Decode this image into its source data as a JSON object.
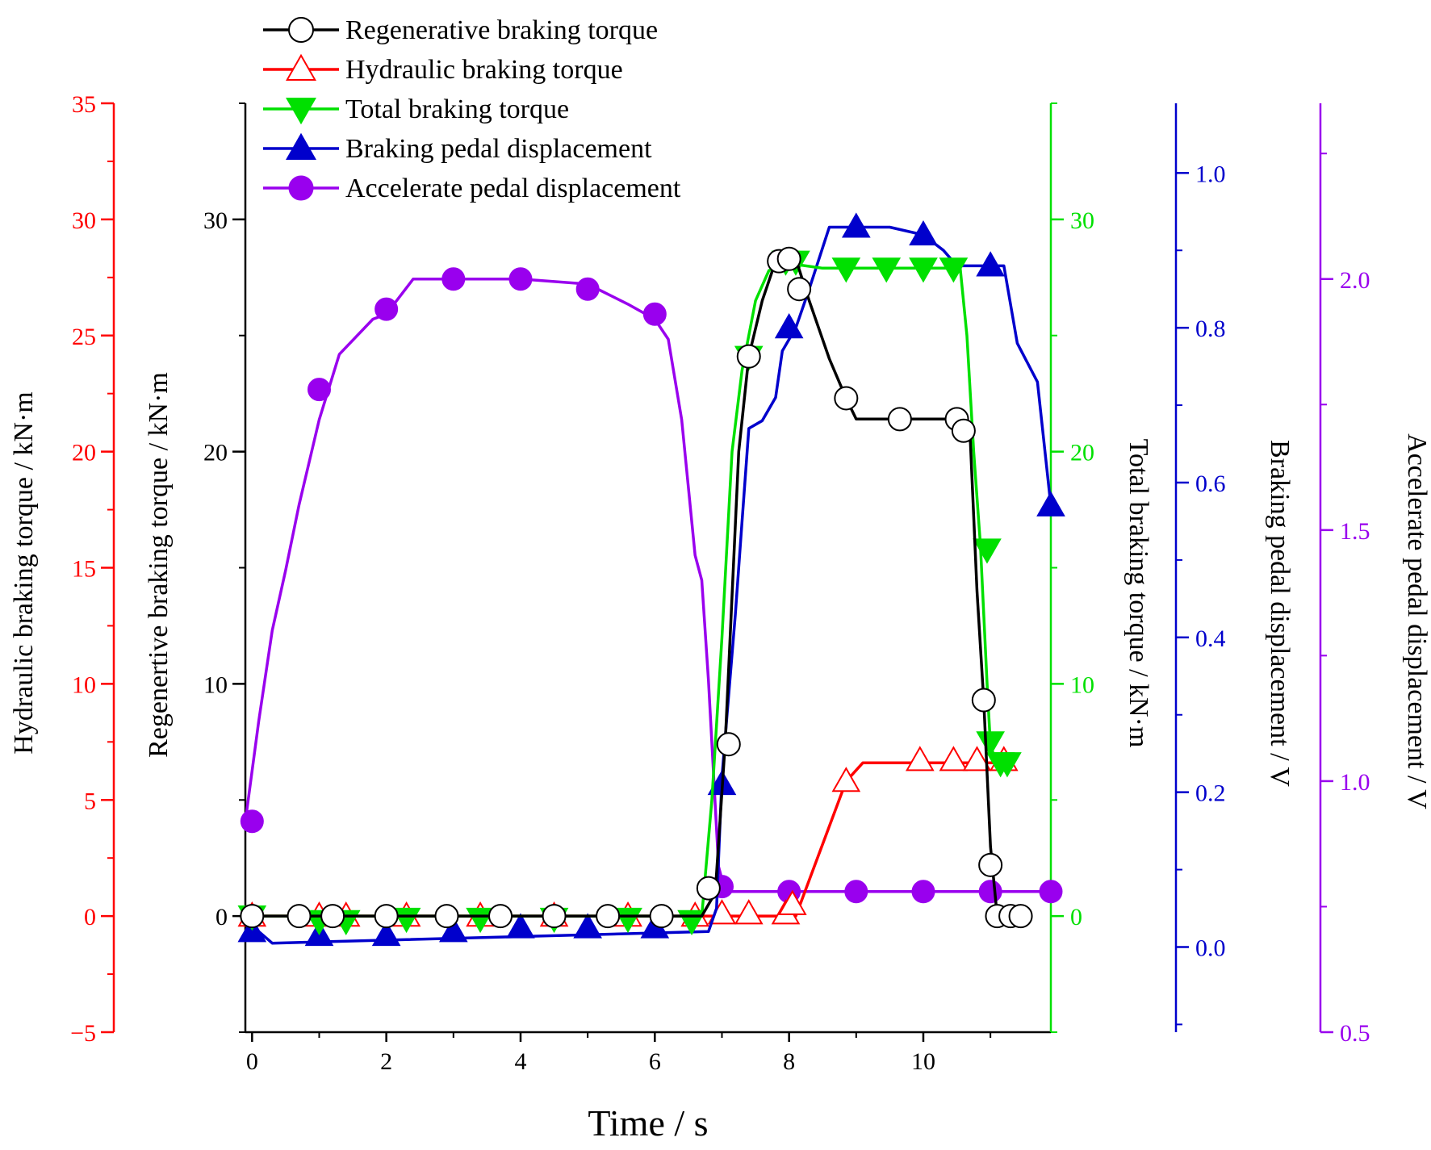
{
  "chart_data": {
    "type": "line",
    "xlabel": "Time  / s",
    "xlim": [
      -0.1,
      11.9
    ],
    "xticks": [
      0,
      2,
      4,
      6,
      8,
      10
    ],
    "axes": [
      {
        "id": "hyd",
        "title": "Hydraulic braking torque / kN·m",
        "color": "#ff0000",
        "range": [
          -5,
          35
        ],
        "ticks": [
          -5,
          0,
          5,
          10,
          15,
          20,
          25,
          30,
          35
        ]
      },
      {
        "id": "regen",
        "title": "Regenertive braking torque / kN·m",
        "color": "#000000",
        "range": [
          -5,
          35
        ],
        "ticks": [
          0,
          10,
          20,
          30
        ]
      },
      {
        "id": "total",
        "title": "Total braking torque / kN·m",
        "color": "#00e000",
        "range": [
          -5,
          35
        ],
        "ticks": [
          0,
          10,
          20,
          30
        ]
      },
      {
        "id": "brake",
        "title": "Braking pedal displacement / V",
        "color": "#0000cc",
        "range": [
          -0.11,
          1.09
        ],
        "ticks": [
          0.0,
          0.2,
          0.4,
          0.6,
          0.8,
          1.0
        ]
      },
      {
        "id": "accel",
        "title": "Accelerate pedal displacement / V",
        "color": "#9900ee",
        "range": [
          0.5,
          2.35
        ],
        "ticks": [
          0.5,
          1.0,
          1.5,
          2.0
        ]
      }
    ],
    "series": [
      {
        "name": "Regenerative braking torque",
        "axis": "regen",
        "color": "#000000",
        "marker": "circle-open",
        "line": [
          [
            -0.1,
            0
          ],
          [
            6.7,
            0
          ],
          [
            6.9,
            1
          ],
          [
            7.05,
            7.5
          ],
          [
            7.25,
            20
          ],
          [
            7.4,
            24.1
          ],
          [
            7.6,
            26.5
          ],
          [
            7.8,
            28.2
          ],
          [
            8.1,
            28.3
          ],
          [
            8.3,
            26.5
          ],
          [
            8.6,
            24
          ],
          [
            8.85,
            22.3
          ],
          [
            9.0,
            21.4
          ],
          [
            10.6,
            21.4
          ],
          [
            10.7,
            20.5
          ],
          [
            10.8,
            14
          ],
          [
            10.9,
            9.3
          ],
          [
            11.0,
            3
          ],
          [
            11.1,
            0
          ],
          [
            11.5,
            0
          ]
        ],
        "markers": [
          [
            0,
            0
          ],
          [
            0.7,
            0
          ],
          [
            1.2,
            0
          ],
          [
            2.0,
            0
          ],
          [
            2.9,
            0
          ],
          [
            3.7,
            0
          ],
          [
            4.5,
            0
          ],
          [
            5.3,
            0
          ],
          [
            6.1,
            0
          ],
          [
            6.8,
            1.2
          ],
          [
            7.1,
            7.4
          ],
          [
            7.4,
            24.1
          ],
          [
            7.85,
            28.2
          ],
          [
            8.0,
            28.3
          ],
          [
            8.15,
            27
          ],
          [
            8.85,
            22.3
          ],
          [
            9.65,
            21.4
          ],
          [
            10.5,
            21.4
          ],
          [
            10.6,
            20.9
          ],
          [
            10.9,
            9.3
          ],
          [
            11.0,
            2.2
          ],
          [
            11.1,
            0
          ],
          [
            11.3,
            0
          ],
          [
            11.45,
            0
          ]
        ]
      },
      {
        "name": "Hydraulic braking torque",
        "axis": "hyd",
        "color": "#ff0000",
        "marker": "triangle-up-open",
        "line": [
          [
            -0.1,
            0
          ],
          [
            8.1,
            0
          ],
          [
            8.85,
            5.8
          ],
          [
            9.1,
            6.6
          ],
          [
            11.3,
            6.6
          ]
        ],
        "markers": [
          [
            0,
            0
          ],
          [
            1.0,
            0
          ],
          [
            1.4,
            0
          ],
          [
            2.3,
            0
          ],
          [
            3.4,
            0
          ],
          [
            4.5,
            0
          ],
          [
            5.6,
            0
          ],
          [
            6.6,
            0
          ],
          [
            7.0,
            0.1
          ],
          [
            7.4,
            0.1
          ],
          [
            7.95,
            0.1
          ],
          [
            8.05,
            0.5
          ],
          [
            8.85,
            5.8
          ],
          [
            9.95,
            6.7
          ],
          [
            10.45,
            6.7
          ],
          [
            10.8,
            6.7
          ],
          [
            11.2,
            6.7
          ]
        ]
      },
      {
        "name": "Total braking torque",
        "axis": "total",
        "color": "#00e000",
        "marker": "triangle-down-filled",
        "line": [
          [
            -0.1,
            0
          ],
          [
            6.7,
            0
          ],
          [
            6.85,
            5
          ],
          [
            7.0,
            12
          ],
          [
            7.15,
            20
          ],
          [
            7.3,
            23.5
          ],
          [
            7.5,
            26.5
          ],
          [
            7.7,
            27.8
          ],
          [
            8.0,
            28.1
          ],
          [
            8.5,
            27.9
          ],
          [
            10.55,
            27.9
          ],
          [
            10.65,
            25
          ],
          [
            10.75,
            20
          ],
          [
            10.85,
            16
          ],
          [
            10.95,
            10
          ],
          [
            11.0,
            7.3
          ],
          [
            11.1,
            6.6
          ],
          [
            11.3,
            6.6
          ]
        ],
        "markers": [
          [
            0,
            0
          ],
          [
            1.0,
            -0.2
          ],
          [
            1.4,
            -0.2
          ],
          [
            2.3,
            -0.1
          ],
          [
            3.4,
            -0.1
          ],
          [
            4.5,
            -0.1
          ],
          [
            5.6,
            -0.1
          ],
          [
            6.55,
            -0.2
          ],
          [
            7.4,
            24.1
          ],
          [
            7.95,
            28.2
          ],
          [
            8.1,
            28.2
          ],
          [
            8.85,
            27.9
          ],
          [
            9.45,
            27.9
          ],
          [
            10.0,
            27.9
          ],
          [
            10.45,
            27.9
          ],
          [
            10.95,
            15.8
          ],
          [
            11.0,
            7.5
          ],
          [
            11.15,
            6.6
          ],
          [
            11.25,
            6.6
          ]
        ]
      },
      {
        "name": "Braking pedal displacement",
        "axis": "brake",
        "color": "#0000cc",
        "marker": "triangle-up-filled",
        "line": [
          [
            -0.1,
            0.02
          ],
          [
            0.1,
            0.02
          ],
          [
            0.3,
            0.005
          ],
          [
            6.8,
            0.02
          ],
          [
            6.92,
            0.05
          ],
          [
            7.0,
            0.22
          ],
          [
            7.2,
            0.43
          ],
          [
            7.3,
            0.55
          ],
          [
            7.4,
            0.67
          ],
          [
            7.6,
            0.68
          ],
          [
            7.8,
            0.71
          ],
          [
            7.9,
            0.77
          ],
          [
            8.1,
            0.8
          ],
          [
            8.3,
            0.85
          ],
          [
            8.6,
            0.93
          ],
          [
            9.5,
            0.93
          ],
          [
            10.0,
            0.92
          ],
          [
            10.3,
            0.9
          ],
          [
            10.5,
            0.88
          ],
          [
            11.2,
            0.88
          ],
          [
            11.4,
            0.78
          ],
          [
            11.7,
            0.73
          ],
          [
            11.9,
            0.57
          ]
        ],
        "markers": [
          [
            0,
            0.02
          ],
          [
            1.0,
            0.015
          ],
          [
            2.0,
            0.015
          ],
          [
            3.0,
            0.02
          ],
          [
            4.0,
            0.025
          ],
          [
            5.0,
            0.025
          ],
          [
            6.0,
            0.025
          ],
          [
            7.0,
            0.21
          ],
          [
            8.0,
            0.8
          ],
          [
            9.0,
            0.93
          ],
          [
            10.0,
            0.92
          ],
          [
            11.0,
            0.88
          ],
          [
            11.9,
            0.57
          ]
        ]
      },
      {
        "name": "Accelerate pedal displacement",
        "axis": "accel",
        "color": "#9900ee",
        "marker": "circle-filled",
        "line": [
          [
            -0.1,
            0.92
          ],
          [
            0.1,
            1.12
          ],
          [
            0.3,
            1.3
          ],
          [
            0.5,
            1.42
          ],
          [
            0.7,
            1.55
          ],
          [
            1.0,
            1.72
          ],
          [
            1.3,
            1.85
          ],
          [
            1.8,
            1.92
          ],
          [
            2.0,
            1.93
          ],
          [
            2.4,
            2.0
          ],
          [
            3.0,
            2.0
          ],
          [
            4.0,
            2.0
          ],
          [
            5.0,
            1.99
          ],
          [
            5.6,
            1.95
          ],
          [
            6.0,
            1.92
          ],
          [
            6.2,
            1.88
          ],
          [
            6.4,
            1.72
          ],
          [
            6.6,
            1.45
          ],
          [
            6.7,
            1.4
          ],
          [
            6.8,
            1.2
          ],
          [
            6.95,
            0.83
          ],
          [
            7.05,
            0.78
          ],
          [
            11.9,
            0.78
          ]
        ],
        "markers": [
          [
            0,
            0.92
          ],
          [
            1.0,
            1.78
          ],
          [
            2.0,
            1.94
          ],
          [
            3.0,
            2.0
          ],
          [
            4.0,
            2.0
          ],
          [
            5.0,
            1.98
          ],
          [
            6.0,
            1.93
          ],
          [
            7.0,
            0.79
          ],
          [
            8.0,
            0.78
          ],
          [
            9.0,
            0.78
          ],
          [
            10.0,
            0.78
          ],
          [
            11.0,
            0.78
          ],
          [
            11.9,
            0.78
          ]
        ]
      }
    ]
  }
}
